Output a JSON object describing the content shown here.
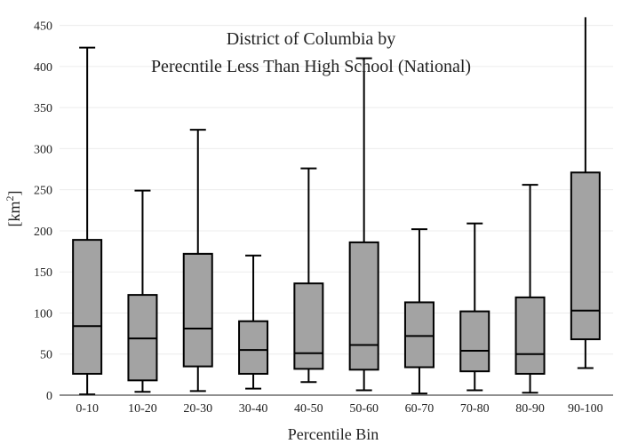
{
  "chart_data": {
    "type": "box",
    "title_lines": [
      "District of Columbia  by",
      "Perecntile Less Than High School (National)"
    ],
    "xlabel": "Percentile Bin",
    "ylabel": "[km",
    "ylabel_sup": "2",
    "ylabel_close": "]",
    "ylim": [
      0,
      455
    ],
    "yticks": [
      0,
      50,
      100,
      150,
      200,
      250,
      300,
      350,
      400,
      450
    ],
    "grid": true,
    "box_color": "#a3a3a3",
    "categories": [
      "0-10",
      "10-20",
      "20-30",
      "30-40",
      "40-50",
      "50-60",
      "60-70",
      "70-80",
      "80-90",
      "90-100"
    ],
    "boxes": [
      {
        "min": 1,
        "q1": 26,
        "median": 84,
        "q3": 189,
        "max": 423
      },
      {
        "min": 4,
        "q1": 18,
        "median": 69,
        "q3": 122,
        "max": 249
      },
      {
        "min": 5,
        "q1": 35,
        "median": 81,
        "q3": 172,
        "max": 323
      },
      {
        "min": 8,
        "q1": 26,
        "median": 55,
        "q3": 90,
        "max": 170
      },
      {
        "min": 16,
        "q1": 32,
        "median": 51,
        "q3": 136,
        "max": 276
      },
      {
        "min": 6,
        "q1": 31,
        "median": 61,
        "q3": 186,
        "max": 410
      },
      {
        "min": 2,
        "q1": 34,
        "median": 72,
        "q3": 113,
        "max": 202
      },
      {
        "min": 6,
        "q1": 29,
        "median": 54,
        "q3": 102,
        "max": 209
      },
      {
        "min": 3,
        "q1": 26,
        "median": 50,
        "q3": 119,
        "max": 256
      },
      {
        "min": 33,
        "q1": 68,
        "median": 103,
        "q3": 271,
        "max": 460
      }
    ]
  }
}
